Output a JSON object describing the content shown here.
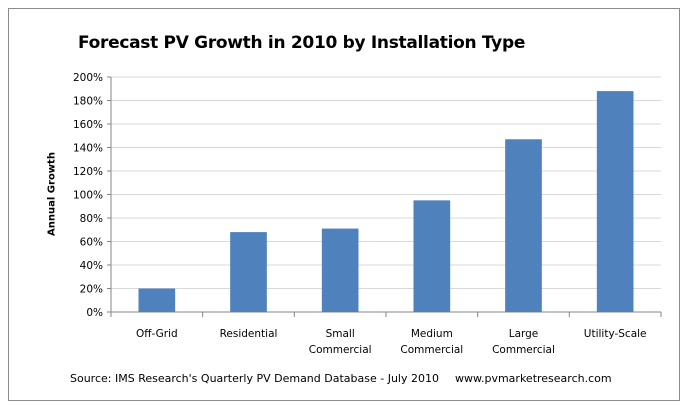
{
  "chart_data": {
    "type": "bar",
    "title": "Forecast PV Growth in 2010 by Installation Type",
    "xlabel": "",
    "ylabel": "Annual Growth",
    "categories": [
      [
        "Off-Grid"
      ],
      [
        "Residential"
      ],
      [
        "Small",
        "Commercial"
      ],
      [
        "Medium",
        "Commercial"
      ],
      [
        "Large",
        "Commercial"
      ],
      [
        "Utility-Scale"
      ]
    ],
    "values": [
      20,
      68,
      71,
      95,
      147,
      188
    ],
    "ylim": [
      0,
      200
    ],
    "yticks": [
      0,
      20,
      40,
      60,
      80,
      100,
      120,
      140,
      160,
      180,
      200
    ],
    "ytick_labels": [
      "0%",
      "20%",
      "40%",
      "60%",
      "80%",
      "100%",
      "120%",
      "140%",
      "160%",
      "180%",
      "200%"
    ],
    "grid": true,
    "legend": "none",
    "bar_color": "#4f81bd",
    "source": "Source: IMS Research's Quarterly PV Demand  Database  - July 2010",
    "website": "www.pvmarketresearch.com"
  }
}
